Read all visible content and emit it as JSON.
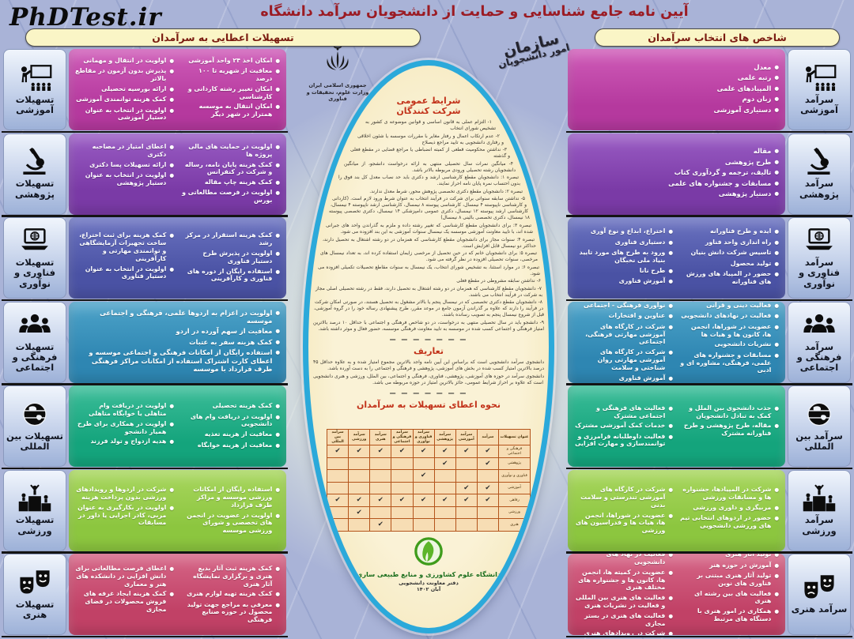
{
  "header": {
    "watermark": "PhDTest.ir",
    "title": "آیین نامه جامع شناسایی و حمایت از دانشجویان سرآمد دانشگاه",
    "left_column_title": "تسهیلات اعطایی به سرآمدان",
    "right_column_title": "شاخص های انتخاب سرآمدان"
  },
  "government": {
    "country": "جمهوری اسلامی ایران",
    "ministry": "وزارت علوم، تحقیقات و فناوری",
    "organization": "سازمان",
    "organization_sub": "امور دانشجویان"
  },
  "colors": {
    "page_bg": "#a9b3d7",
    "oval_border": "#2ba9da",
    "oval_bg": "#f9efcd",
    "title_red": "#9b1b23",
    "pill_bg": "#faf5c6",
    "table_cell": "#f7ddb4",
    "table_border": "#b4541b"
  },
  "facilities_sections": [
    {
      "key": "education",
      "label": "تسهیلات آموزشی",
      "icon": "teacher-board-icon",
      "color": "#b5399e",
      "color_light": "#cf5cb8",
      "cols": 2,
      "items": [
        "امکان اخذ ۲۴ واحد آموزشی",
        "معافیت از شهریه تا ۱۰۰ درصد",
        "امکان تغییر رشته کاردانی و کارشناسی",
        "امکان انتقال به موسسه همتراز در شهر دیگر",
        "اولویت در انتقال و مهمانی",
        "پذیرش بدون آزمون در مقاطع بالاتر",
        "ارائه بورسیه تحصیلی",
        "کمک هزینه توانمندی آموزشی",
        "اولویت در انتخاب به عنوان دستیار آموزشی"
      ]
    },
    {
      "key": "research",
      "label": "تسهیلات پژوهشی",
      "icon": "microscope-icon",
      "color": "#7a3aa6",
      "color_light": "#9a5cc4",
      "cols": 2,
      "items": [
        "اولویت در حمایت های مالی پروژه ها",
        "کمک هزینه پایان نامه، رساله و شرکت در کنفرانس",
        "کمک هزینه چاپ مقاله",
        "اولویت در فرصت مطالعاتی و بورس",
        "اعطای امتیاز در مصاحبه دکتری",
        "ارائه تسهیلات پسا دکتری",
        "اولویت در انتخاب به عنوان دستیار پژوهشی"
      ]
    },
    {
      "key": "technology",
      "label": "تسهیلات فناوری و نوآوری",
      "icon": "laptop-globe-icon",
      "color": "#4a52a4",
      "color_light": "#6a72c0",
      "cols": 2,
      "items": [
        "کمک هزینه استقرار در مرکز رشد",
        "اولویت در پذیرش طرح دستیار فناوری",
        "استفاده رایگان از دوره های فناوری و کارآفرینی",
        "کمک هزینه برای ثبت اختراع، ساخت تجهیزات آزمایشگاهی و توانمندی مهارتی و کارآفرینی",
        "اولویت در انتخاب به عنوان دستیار فناوری"
      ]
    },
    {
      "key": "cultural",
      "label": "تسهیلات فرهنگی و اجتماعی",
      "icon": "people-group-icon",
      "color": "#2e86b2",
      "color_light": "#4da3c9",
      "cols": 1,
      "items": [
        "اولویت در اعزام به اردوها علمی، فرهنگی و اجتماعی موسسه",
        "معافیت از سهم آورده در اردو",
        "کمک هزینه سفر به عتبات",
        "استفاده رایگان از امکانات فرهنگی و اجتماعی موسسه و اعطای کارت اشتراک استفاده از امکانات مراکز فرهنگی طرف قرارداد با موسسه"
      ]
    },
    {
      "key": "international",
      "label": "تسهیلات بین المللی",
      "icon": "globe-icon",
      "color": "#14a47c",
      "color_light": "#3cbd99",
      "cols": 2,
      "items": [
        "کمک هزینه تحصیلی",
        "اولویت در دریافت وام های دانشجویی",
        "معافیت از هزینه تغذیه",
        "معافیت از هزینه خوابگاه",
        "اولویت در دریافت وام متاهلی یا خوابگاه متاهلی",
        "اولویت در همکاری برای طرح همیار دانشجو",
        "هدیه ازدواج و تولد فرزند"
      ]
    },
    {
      "key": "sports",
      "label": "تسهیلات ورزشی",
      "icon": "podium-winner-icon",
      "color": "#8cc63f",
      "color_light": "#a8d65e",
      "cols": 2,
      "items": [
        "استفاده رایگان از امکانات ورزشی موسسه و مراکز طرف قرارداد",
        "اولویت در عضویت در انجمن های تخصصی و شورای ورزشی موسسه",
        "شرکت در اردوها و رویدادهای ورزشی بدون پرداخت هزینه",
        "اولویت در بکارگیری به عنوان مربی، کادر اجرایی یا داور در مسابقات"
      ]
    },
    {
      "key": "arts",
      "label": "تسهیلات هنری",
      "icon": "theater-masks-icon",
      "color": "#c14166",
      "color_light": "#d66687",
      "cols": 2,
      "items": [
        "کمک هزینه ثبت آثار بدیع هنری و برگزاری نمایشگاه آثار هنری",
        "کمک هزینه تهیه لوازم هنری",
        "معرفی به مراجع جهت تولید محصول در حوزه صنایع فرهنگی",
        "اعطای فرصت مطالعاتی برای دانش افزایی در دانشکده های هنر و معماری",
        "کمک هزینه ایجاد غرفه های فروش محصولات در فضای مجازی"
      ]
    }
  ],
  "indicator_sections": [
    {
      "key": "education",
      "label": "سرآمد آموزشی",
      "icon": "teacher-board-icon",
      "color": "#b5399e",
      "color_light": "#cf5cb8",
      "cols": 1,
      "items": [
        "معدل",
        "رتبه علمی",
        "المپیادهای علمی",
        "زبان دوم",
        "دستیاری آموزشی"
      ]
    },
    {
      "key": "research",
      "label": "سرآمد پژوهشی",
      "icon": "microscope-icon",
      "color": "#7a3aa6",
      "color_light": "#9a5cc4",
      "cols": 1,
      "items": [
        "مقاله",
        "طرح پژوهشی",
        "تالیف، ترجمه و گردآوری کتاب",
        "مسابقات و جشنواره های علمی",
        "دستیار پژوهشی"
      ]
    },
    {
      "key": "technology",
      "label": "سرآمد فناوری و نوآوری",
      "icon": "laptop-globe-icon",
      "color": "#4a52a4",
      "color_light": "#6a72c0",
      "cols": 2,
      "items": [
        "ایده و طرح فناورانه",
        "راه اندازی واحد فناور",
        "تاسیس شرکت دانش بنیان",
        "تولید محصول",
        "حضور در المپیاد های ورزش های فناورانه",
        "اختراع، ابداع و نوع آوری",
        "دستیاری فناوری",
        "ورود به طرح های مورد تایید بنیاد ملی نخبگان",
        "طرح نانا",
        "آموزش فناوری"
      ]
    },
    {
      "key": "cultural",
      "label": "سرآمد فرهنگی و اجتماعی",
      "icon": "people-group-icon",
      "color": "#2e86b2",
      "color_light": "#4da3c9",
      "cols": 2,
      "items": [
        "فعالیت دینی و قرآنی",
        "فعالیت در نهادهای دانشجویی",
        "عضویت در شوراها، انجمن ها، کانون ها و هیات ها",
        "نشریات دانشجویی",
        "مسابقات و جشنواره های علمی، فرهنگی، مشاوره ای و ادبی",
        "نوآوری فرهنگی - اجتماعی",
        "عناوین و افتخارات",
        "شرکت در کارگاه های آموزشی مهارتی فرهنگی، اجتماعی",
        "شرکت در کارگاه های آموزشی مهارتی روان شناختی و سلامت",
        "آموزش فناوری"
      ]
    },
    {
      "key": "international",
      "label": "سرآمد بین المللی",
      "icon": "globe-icon",
      "color": "#14a47c",
      "color_light": "#3cbd99",
      "cols": 2,
      "items": [
        "جذب دانشجوی بین الملل و کمک به تبادل دانشجویان",
        "مقاله، طرح پژوهشی و طرح فناورانه مشترک",
        "فعالیت های فرهنگی و اجتماعی مشترک",
        "خدمات کمک آموزشی مشترک",
        "فعالیت داوطلبانه فرامرزی و توانمندسازی و مهارت افزایی"
      ]
    },
    {
      "key": "sports",
      "label": "سرآمد ورزشی",
      "icon": "podium-winner-icon",
      "color": "#8cc63f",
      "color_light": "#a8d65e",
      "cols": 2,
      "items": [
        "شرکت در المپیادها، جشنواره ها و مسابقات ورزشی",
        "مربیگری و داوری ورزشی",
        "حضور در اردوهای انتخابی تیم های ورزشی دانشجویی",
        "شرکت در کارگاه های آموزشی تندرستی و سلامت بدنی",
        "عضویت در شوراها، انجمن ها، هیات ها و فدراسیون های ورزشی"
      ]
    },
    {
      "key": "arts",
      "label": "سرآمد هنری",
      "icon": "theater-masks-icon",
      "color": "#c14166",
      "color_light": "#d66687",
      "cols": 2,
      "items": [
        "تولید آثار هنری",
        "آموزش در حوزه هنر",
        "تولید آثار هنری مبتنی بر فناوری های نوین",
        "فعالیت های بین رشته ای هنری",
        "همکاری در امور هنری با دستگاه های مرتبط",
        "فعالیت در نهاد های دانشجویی",
        "عضویت در کمیته ها، انجمن ها، کانون ها و جشنواره های مختلف هنری",
        "فعالیت های هنری بین المللی و فعالیت در نشریات هنری",
        "فعالیت های هنری در بستر مجازی",
        "شرکت در رویدادهای هنری"
      ]
    }
  ],
  "oval": {
    "conditions_title": "شرایط عمومی شرکت کنندگان",
    "conditions": [
      "۱- التزام عملی به قانون اساسی و قوانین موضوعه ی کشور به تشخیص شورای انتخاب",
      "۲- عدم ارتکاب اعمال و رفتار مغایر با مقررات موسسه یا شئون اخلاقی و رفتاری دانشجویی به تایید مراجع ذیصلاح",
      "۳- نداشتن محکومیت قطعی از کمیته انضباطی یا مراجع قضایی در مقطع فعلی و گذشته",
      "۴- میانگین نمرات سال تحصیلی منتهی به ارائه درخواست دانشجو، از میانگین دانشجویان رشته تحصیلی ورودی مربوطه بالاتر باشد.",
      "تبصره ۱: دانشجویان مقطع کارشناسی ارشد و دکتری باید حد نصاب معدل کل بند فوق را بدون احتساب نمره پایان نامه احراز نمایند.",
      "تبصره ۲: دانشجویان مقطع دکتری تخصصی پژوهش محور، شرط معدل ندارند.",
      "۵- نداشتن سابقه سنواتی برای شرکت در فرآیند انتخاب به عنوان شرط ورود لازم است. (کاردانی و کارشناسی ناپیوسته ۴ نیمسال، کارشناسی پیوسته ۸ نیمسال، کارشناسی ارشد ناپیوسته ۴ نیمسال، کارشناسی ارشد پیوسته ۱۲ نیمسال، دکتری عمومی دامپزشکی ۱۴ نیمسال، دکتری تخصصی پیوسته ۱۸ نیمسال، دکتری تخصصی بالینی ۸ نیمسال)",
      "تبصره ۳: برای دانشجویان مقطع کارشناسی که تغییر رشته داده و ملزم به گذراندن واحد های جبرانی شده اند، با تایید معاونت آموزشی موسسه یک نیمسال سنوات آموزشی به این بند افزوده می شود.",
      "تبصره ۴: سنوات مجاز برای دانشجویان مقطع کارشناسی که همزمان در دو رشته اشتغال به تحصیل دارند، حداکثر دو نیمسال قابل افزایش است.",
      "تبصره ۵: برای دانشجویان خانم که در حین تحصیل از مرخصی زایمان استفاده کرده اند، به تعداد نیمسال های مرخصی، سنوات تحصیلی افزوده در نظر گرفته می شود.",
      "تبصره ۶: در موارد استثنا، به تشخیص شورای انتخاب، یک نیمسال به سنوات مقاطع تحصیلات تکمیلی افزوده می شود.",
      "۶- نداشتن سابقه مشروطی در مقطع فعلی",
      "۷- دانشجویان مقطع کارشناسی که همزمان در دو رشته اشتغال به تحصیل دارند، فقط در رشته تحصیلی اصلی مجاز به شرکت در فرآیند انتخاب می باشند.",
      "۸- دانشجویان مقطع دکتری تخصصی که در نیمسال پنجم یا بالاتر مشغول به تحصیل هستند، در صورتی امکان شرکت در فرآیند را دارند که علاوه بر گذراندن آزمون جامع در موعد مقرر، طرح پیشنهادی رساله خود را در گروه آموزشی، قبل از شروع نیمسال پنجم به تصویب رسانده باشند.",
      "۹- دانشجو باید در سال تحصیلی منتهی به درخواست، در دو شاخص فرهنگی و اجتماعی با حداقل ۱۰ درصد بالاترین امتیاز فرهنگی و اجتماعی کسب شده در موسسه به تایید معاونت فرهنگی موسسه، حضور فعال و موثر داشته باشد."
    ],
    "definitions_title": "تعاریف",
    "definitions": [
      "دانشجوی سرآمد دانشجویی است که براساس این آیین نامه واجد بالاترین مجموع امتیاز شده و به علاوه حداقل ۴۵ درصد بالاترین امتیاز کسب شده در بخش های آموزشی، پژوهشی و فرهنگی و اجتماعی را به دست آورده باشد.",
      "دانشجوی سرآمد در حوزه های آموزشی، پژوهشی، فناوری، فرهنگی و اجتماعی، بین الملل، ورزشی و هنری دانشجویی است که علاوه بر احراز شرایط عمومی، حائز بالاترین امتیاز در حوزه مربوطه می باشد."
    ],
    "table_title": "نحوه اعطای تسهیلات به سرآمدان",
    "table": {
      "corner": "عنوان تسهیلات",
      "columns": [
        "سرآمد",
        "سرآمد آموزشی",
        "سرآمد پژوهشی",
        "سرآمد فناوری و نوآوری",
        "سرآمد فرهنگی و اجتماعی",
        "سرآمد هنری",
        "سرآمد ورزشی",
        "سرآمد بین المللی"
      ],
      "check_mark": "✔",
      "rows": [
        {
          "label": "فرهنگی و اجتماعی",
          "checks": [
            1,
            1,
            1,
            1,
            1,
            1,
            1,
            1
          ]
        },
        {
          "label": "پژوهشی",
          "checks": [
            1,
            0,
            1,
            0,
            0,
            0,
            0,
            0
          ]
        },
        {
          "label": "فناوری و نوآوری",
          "checks": [
            0,
            0,
            0,
            1,
            0,
            0,
            0,
            0
          ]
        },
        {
          "label": "آموزشی",
          "checks": [
            1,
            1,
            0,
            0,
            0,
            0,
            0,
            0
          ]
        },
        {
          "label": "رفاهی",
          "checks": [
            1,
            1,
            1,
            1,
            1,
            1,
            1,
            1
          ]
        },
        {
          "label": "ورزشی",
          "checks": [
            0,
            0,
            0,
            0,
            0,
            0,
            1,
            0
          ]
        },
        {
          "label": "هنری",
          "checks": [
            0,
            0,
            0,
            0,
            0,
            1,
            0,
            0
          ]
        }
      ]
    },
    "footer": {
      "university": "دانشگاه علوم کشاورزی و منابع طبیعی ساری",
      "office": "دفتر معاونت دانشجویی",
      "date": "آبان ۱۴۰۲"
    }
  }
}
